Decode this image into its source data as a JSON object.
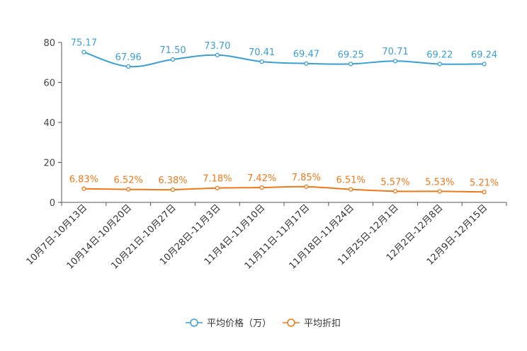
{
  "chart_data": {
    "type": "line",
    "categories": [
      "10月7日-10月13日",
      "10月14日-10月20日",
      "10月21日-10月27日",
      "10月28日-11月3日",
      "11月4日-11月10日",
      "11月11日-11月17日",
      "11月18日-11月24日",
      "11月25日-12月1日",
      "12月2日-12月8日",
      "12月9日-12月15日"
    ],
    "series": [
      {
        "name": "平均价格（万）",
        "color": "#3a9fd6",
        "values": [
          75.17,
          67.96,
          71.5,
          73.7,
          70.41,
          69.47,
          69.25,
          70.71,
          69.22,
          69.24
        ],
        "labels": [
          "75.17",
          "67.96",
          "71.50",
          "73.70",
          "70.41",
          "69.47",
          "69.25",
          "70.71",
          "69.22",
          "69.24"
        ]
      },
      {
        "name": "平均折扣",
        "color": "#f07818",
        "values": [
          6.83,
          6.52,
          6.38,
          7.18,
          7.42,
          7.85,
          6.51,
          5.57,
          5.53,
          5.21
        ],
        "labels": [
          "6.83%",
          "6.52%",
          "6.38%",
          "7.18%",
          "7.42%",
          "7.85%",
          "6.51%",
          "5.57%",
          "5.53%",
          "5.21%"
        ]
      }
    ],
    "y_ticks": [
      "0",
      "20",
      "40",
      "60",
      "80"
    ],
    "ylim": [
      0,
      80
    ],
    "title": "",
    "xlabel": "",
    "ylabel": "",
    "legend_position": "bottom-center",
    "grid": false
  }
}
